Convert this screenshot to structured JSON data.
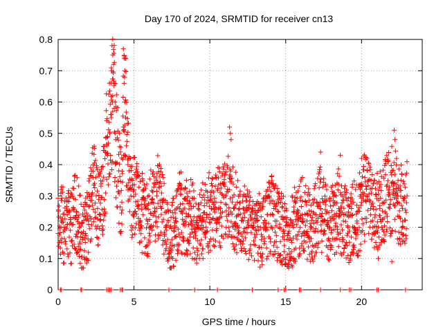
{
  "chart_data": {
    "type": "scatter",
    "title": "Day 170 of 2024, SRMTID for receiver cn13",
    "xlabel": "GPS time / hours",
    "ylabel": "SRMTID / TECUs",
    "xlim": [
      0,
      24
    ],
    "ylim": [
      0,
      0.8
    ],
    "xticks": [
      0,
      5,
      10,
      15,
      20
    ],
    "xtick_labels": [
      "0",
      "5",
      "10",
      "15",
      "20"
    ],
    "yticks": [
      0,
      0.1,
      0.2,
      0.3,
      0.4,
      0.5,
      0.6,
      0.7,
      0.8
    ],
    "ytick_labels": [
      "0",
      "0.1",
      "0.2",
      "0.3",
      "0.4",
      "0.5",
      "0.6",
      "0.7",
      "0.8"
    ],
    "grid": true,
    "marker": "+",
    "color": "#ff0000",
    "series": [
      {
        "name": "SRMTID",
        "x": [
          0.0,
          0.2,
          0.4,
          0.6,
          0.8,
          1.0,
          1.2,
          1.4,
          1.6,
          1.8,
          2.0,
          2.2,
          2.4,
          2.6,
          2.8,
          3.0,
          3.2,
          3.4,
          3.5,
          3.6,
          3.7,
          3.8,
          4.0,
          4.2,
          4.3,
          4.4,
          4.6,
          4.8,
          5.0,
          5.3,
          5.6,
          5.9,
          6.2,
          6.5,
          6.8,
          7.1,
          7.4,
          7.7,
          8.0,
          8.3,
          8.6,
          8.9,
          9.2,
          9.5,
          9.8,
          10.1,
          10.4,
          10.7,
          11.0,
          11.3,
          11.6,
          11.9,
          12.2,
          12.5,
          12.8,
          13.1,
          13.4,
          13.7,
          14.0,
          14.3,
          14.6,
          14.9,
          15.2,
          15.5,
          15.8,
          16.1,
          16.4,
          16.7,
          17.0,
          17.3,
          17.6,
          17.9,
          18.2,
          18.5,
          18.8,
          19.1,
          19.4,
          19.7,
          20.0,
          20.3,
          20.6,
          20.9,
          21.2,
          21.5,
          21.8,
          22.1,
          22.4,
          22.7,
          23.0
        ],
        "y": [
          0.18,
          0.22,
          0.2,
          0.24,
          0.19,
          0.23,
          0.25,
          0.2,
          0.16,
          0.18,
          0.22,
          0.3,
          0.34,
          0.26,
          0.24,
          0.36,
          0.46,
          0.5,
          0.55,
          0.62,
          0.58,
          0.48,
          0.38,
          0.28,
          0.52,
          0.6,
          0.4,
          0.3,
          0.32,
          0.26,
          0.24,
          0.22,
          0.28,
          0.3,
          0.26,
          0.2,
          0.15,
          0.2,
          0.26,
          0.22,
          0.24,
          0.22,
          0.2,
          0.22,
          0.24,
          0.26,
          0.28,
          0.26,
          0.3,
          0.32,
          0.26,
          0.24,
          0.22,
          0.2,
          0.2,
          0.22,
          0.16,
          0.2,
          0.24,
          0.22,
          0.2,
          0.18,
          0.16,
          0.2,
          0.22,
          0.24,
          0.22,
          0.2,
          0.24,
          0.26,
          0.22,
          0.2,
          0.24,
          0.26,
          0.22,
          0.2,
          0.24,
          0.22,
          0.28,
          0.3,
          0.26,
          0.24,
          0.26,
          0.28,
          0.3,
          0.32,
          0.28,
          0.26,
          0.3
        ]
      }
    ],
    "zero_points_x": [
      0.15,
      0.2,
      1.5,
      1.55,
      3.2,
      3.3,
      3.4,
      3.5,
      4.1,
      4.2,
      4.25,
      7.3,
      9.0,
      10.5,
      12.8,
      14.5,
      14.9,
      15.0,
      15.9,
      16.0,
      17.3,
      18.6,
      19.2,
      19.3,
      21.0,
      21.1,
      22.9
    ]
  }
}
